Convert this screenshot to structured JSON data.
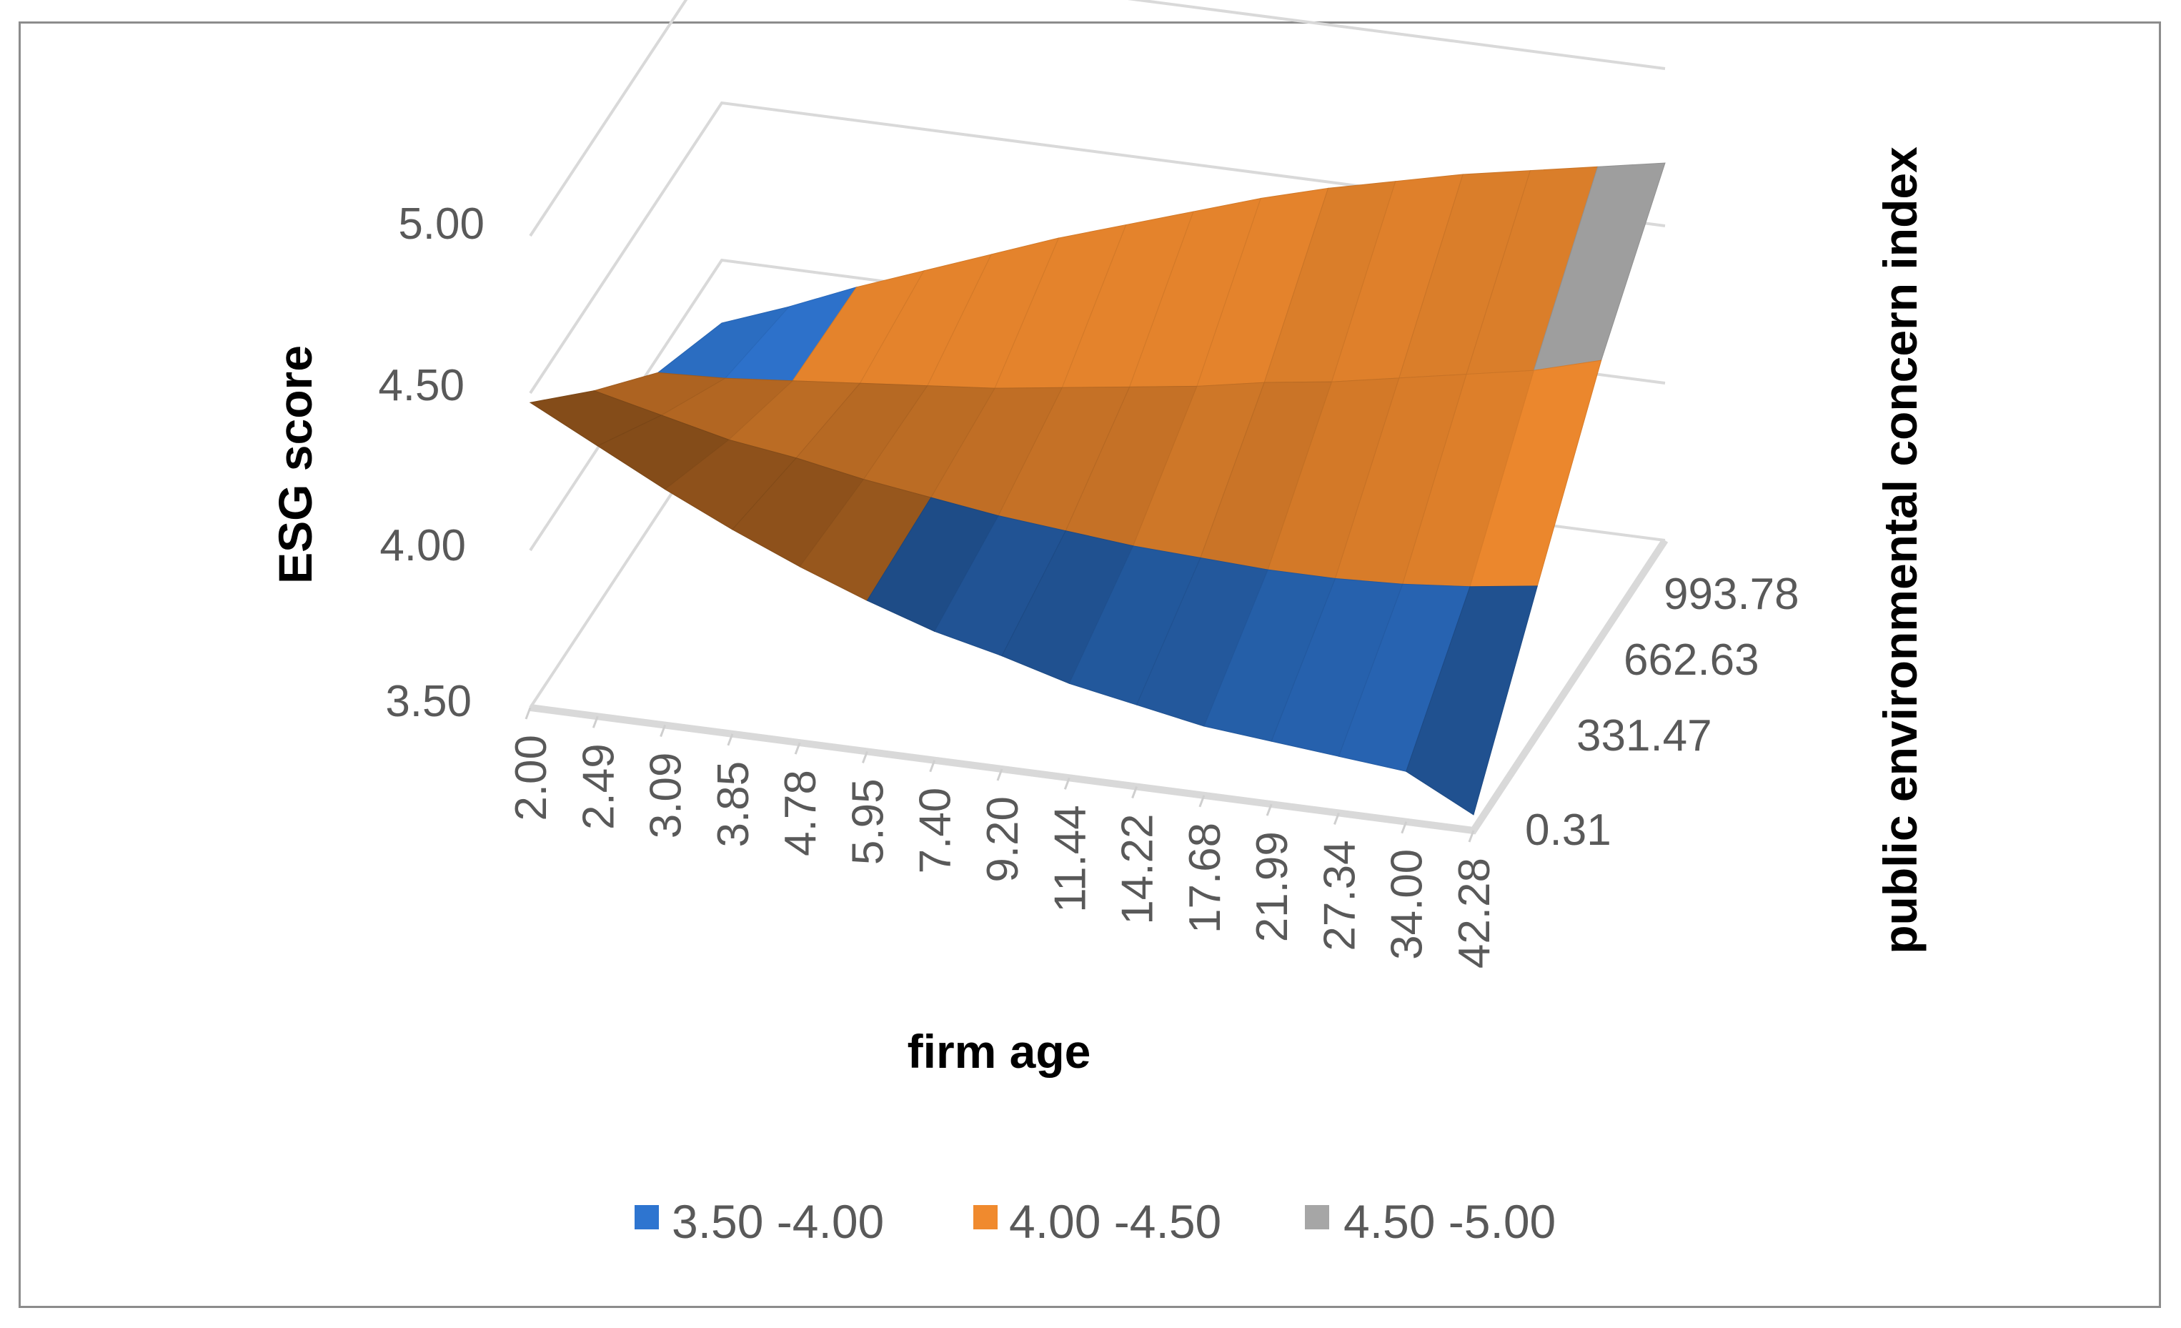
{
  "chart_data": {
    "type": "surface",
    "title": "",
    "xlabel": "firm age",
    "ylabel": "ESG score",
    "zlabel": "public environmental concern index",
    "x_categories": [
      "2.00",
      "2.49",
      "3.09",
      "3.85",
      "4.78",
      "5.95",
      "7.40",
      "9.20",
      "11.44",
      "14.22",
      "17.68",
      "21.99",
      "27.34",
      "34.00",
      "42.28"
    ],
    "depth_categories": [
      "0.31",
      "331.47",
      "662.63",
      "993.78"
    ],
    "y_ticks": [
      "3.50",
      "4.00",
      "4.50",
      "5.00"
    ],
    "ylim": [
      3.5,
      5.0
    ],
    "grid": true,
    "legend_position": "bottom",
    "legend": [
      {
        "label": "3.50 -4.00",
        "color": "#2e75d0"
      },
      {
        "label": "4.00 -4.50",
        "color": "#f08a2e"
      },
      {
        "label": "4.50 -5.00",
        "color": "#a6a6a6"
      }
    ],
    "series": [
      {
        "name": "0.31",
        "values": [
          4.47,
          4.36,
          4.25,
          4.15,
          4.06,
          3.98,
          3.91,
          3.86,
          3.8,
          3.76,
          3.72,
          3.7,
          3.68,
          3.66,
          3.55
        ]
      },
      {
        "name": "331.47",
        "values": [
          4.2,
          4.15,
          4.1,
          4.07,
          4.03,
          4.0,
          3.97,
          3.95,
          3.93,
          3.92,
          3.91,
          3.91,
          3.92,
          3.94,
          3.97
        ]
      },
      {
        "name": "662.63",
        "values": [
          3.95,
          3.96,
          3.98,
          4.0,
          4.02,
          4.04,
          4.07,
          4.1,
          4.13,
          4.17,
          4.2,
          4.24,
          4.28,
          4.32,
          4.38
        ]
      },
      {
        "name": "993.78",
        "values": [
          3.8,
          3.88,
          3.97,
          4.05,
          4.13,
          4.21,
          4.28,
          4.35,
          4.42,
          4.48,
          4.53,
          4.58,
          4.62,
          4.66,
          4.7
        ]
      }
    ]
  }
}
